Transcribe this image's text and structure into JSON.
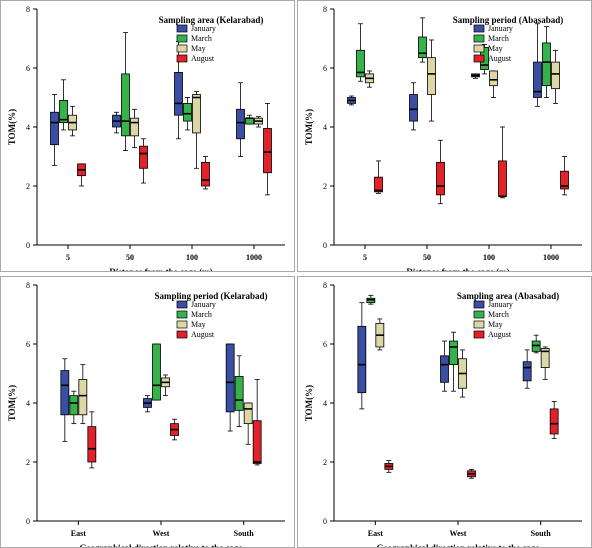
{
  "colors": {
    "January": "#3a4fa3",
    "March": "#35b34a",
    "May": "#ddd7a6",
    "August": "#e32129"
  },
  "chart_data": [
    {
      "type": "boxplot",
      "title": "Sampling area (Kelarabad)",
      "xlabel": "Distance from the cage (m)",
      "ylabel": "TOM(%)",
      "ylim": [
        0,
        8
      ],
      "yticks": [
        0,
        2,
        4,
        6,
        8
      ],
      "categories": [
        "5",
        "50",
        "100",
        "1000"
      ],
      "legend": {
        "position": "top-right",
        "entries": [
          "January",
          "March",
          "May",
          "August"
        ]
      },
      "series": [
        {
          "name": "January",
          "boxes": [
            {
              "min": 2.7,
              "q1": 3.4,
              "median": 4.15,
              "q3": 4.5,
              "max": 5.1
            },
            {
              "min": 3.8,
              "q1": 4.0,
              "median": 4.2,
              "q3": 4.4,
              "max": 4.5
            },
            {
              "min": 3.6,
              "q1": 4.4,
              "median": 4.8,
              "q3": 5.85,
              "max": 6.9
            },
            {
              "min": 3.0,
              "q1": 3.6,
              "median": 4.15,
              "q3": 4.6,
              "max": 5.5
            }
          ]
        },
        {
          "name": "March",
          "boxes": [
            {
              "min": 3.9,
              "q1": 4.15,
              "median": 4.25,
              "q3": 4.9,
              "max": 5.6
            },
            {
              "min": 3.2,
              "q1": 3.7,
              "median": 4.2,
              "q3": 5.8,
              "max": 7.2
            },
            {
              "min": 3.9,
              "q1": 4.2,
              "median": 4.45,
              "q3": 4.8,
              "max": 5.0
            },
            {
              "min": 4.1,
              "q1": 4.1,
              "median": 4.3,
              "q3": 4.3,
              "max": 4.4
            }
          ]
        },
        {
          "name": "May",
          "boxes": [
            {
              "min": 3.7,
              "q1": 3.9,
              "median": 4.15,
              "q3": 4.4,
              "max": 4.7
            },
            {
              "min": 3.3,
              "q1": 3.7,
              "median": 4.15,
              "q3": 4.3,
              "max": 4.6
            },
            {
              "min": 2.6,
              "q1": 3.8,
              "median": 5.0,
              "q3": 5.1,
              "max": 5.2
            },
            {
              "min": 4.0,
              "q1": 4.1,
              "median": 4.2,
              "q3": 4.3,
              "max": 4.35
            }
          ]
        },
        {
          "name": "August",
          "boxes": [
            {
              "min": 2.0,
              "q1": 2.35,
              "median": 2.55,
              "q3": 2.75,
              "max": 2.75
            },
            {
              "min": 2.1,
              "q1": 2.6,
              "median": 3.1,
              "q3": 3.35,
              "max": 3.6
            },
            {
              "min": 1.9,
              "q1": 2.0,
              "median": 2.2,
              "q3": 2.8,
              "max": 3.0
            },
            {
              "min": 1.7,
              "q1": 2.45,
              "median": 3.15,
              "q3": 3.95,
              "max": 4.8
            }
          ]
        }
      ]
    },
    {
      "type": "boxplot",
      "title": "Sampling period (Abasabad)",
      "xlabel": "Distance from the cage (m)",
      "ylabel": "TOM(%)",
      "ylim": [
        0,
        8
      ],
      "yticks": [
        0,
        2,
        4,
        6,
        8
      ],
      "categories": [
        "5",
        "50",
        "100",
        "1000"
      ],
      "legend": {
        "position": "top-right",
        "entries": [
          "January",
          "March",
          "May",
          "August"
        ]
      },
      "series": [
        {
          "name": "January",
          "boxes": [
            {
              "min": 4.75,
              "q1": 4.8,
              "median": 4.9,
              "q3": 5.0,
              "max": 5.05
            },
            {
              "min": 3.9,
              "q1": 4.2,
              "median": 4.6,
              "q3": 5.1,
              "max": 5.5
            },
            {
              "min": 5.65,
              "q1": 5.7,
              "median": 5.75,
              "q3": 5.8,
              "max": 5.8
            },
            {
              "min": 4.7,
              "q1": 5.0,
              "median": 5.2,
              "q3": 6.2,
              "max": 7.5
            }
          ]
        },
        {
          "name": "March",
          "boxes": [
            {
              "min": 5.55,
              "q1": 5.7,
              "median": 5.85,
              "q3": 6.6,
              "max": 7.5
            },
            {
              "min": 6.2,
              "q1": 6.35,
              "median": 6.5,
              "q3": 7.05,
              "max": 7.7
            },
            {
              "min": 5.8,
              "q1": 5.95,
              "median": 6.1,
              "q3": 6.7,
              "max": 6.8
            },
            {
              "min": 5.0,
              "q1": 5.4,
              "median": 6.2,
              "q3": 6.85,
              "max": 7.4
            }
          ]
        },
        {
          "name": "May",
          "boxes": [
            {
              "min": 5.35,
              "q1": 5.5,
              "median": 5.65,
              "q3": 5.8,
              "max": 5.9
            },
            {
              "min": 4.2,
              "q1": 5.1,
              "median": 5.8,
              "q3": 6.35,
              "max": 6.95
            },
            {
              "min": 5.0,
              "q1": 5.4,
              "median": 5.6,
              "q3": 5.9,
              "max": 5.9
            },
            {
              "min": 4.8,
              "q1": 5.3,
              "median": 5.8,
              "q3": 6.2,
              "max": 6.6
            }
          ]
        },
        {
          "name": "August",
          "boxes": [
            {
              "min": 1.75,
              "q1": 1.8,
              "median": 1.85,
              "q3": 2.3,
              "max": 2.85
            },
            {
              "min": 1.4,
              "q1": 1.7,
              "median": 2.0,
              "q3": 2.8,
              "max": 3.55
            },
            {
              "min": 1.6,
              "q1": 1.65,
              "median": 1.65,
              "q3": 2.85,
              "max": 4.0
            },
            {
              "min": 1.7,
              "q1": 1.9,
              "median": 2.0,
              "q3": 2.5,
              "max": 3.0
            }
          ]
        }
      ]
    },
    {
      "type": "boxplot",
      "title": "Sampling period (Kelarabad)",
      "xlabel": "Geographical direction relative to the cage",
      "ylabel": "TOM(%)",
      "ylim": [
        0,
        8
      ],
      "yticks": [
        0,
        2,
        4,
        6,
        8
      ],
      "categories": [
        "East",
        "West",
        "South"
      ],
      "legend": {
        "position": "top-right",
        "entries": [
          "January",
          "March",
          "May",
          "August"
        ]
      },
      "series": [
        {
          "name": "January",
          "boxes": [
            {
              "min": 2.7,
              "q1": 3.6,
              "median": 4.6,
              "q3": 5.1,
              "max": 5.5
            },
            {
              "min": 3.7,
              "q1": 3.85,
              "median": 4.0,
              "q3": 4.15,
              "max": 4.25
            },
            {
              "min": 3.05,
              "q1": 3.7,
              "median": 4.7,
              "q3": 6.0,
              "max": 6.0
            }
          ]
        },
        {
          "name": "March",
          "boxes": [
            {
              "min": 3.3,
              "q1": 3.6,
              "median": 4.0,
              "q3": 4.25,
              "max": 4.4
            },
            {
              "min": 4.1,
              "q1": 4.1,
              "median": 4.6,
              "q3": 6.0,
              "max": 6.0
            },
            {
              "min": 3.2,
              "q1": 3.75,
              "median": 4.1,
              "q3": 4.9,
              "max": 5.6
            }
          ]
        },
        {
          "name": "May",
          "boxes": [
            {
              "min": 3.3,
              "q1": 3.6,
              "median": 4.25,
              "q3": 4.8,
              "max": 5.3
            },
            {
              "min": 4.25,
              "q1": 4.55,
              "median": 4.7,
              "q3": 4.85,
              "max": 4.95
            },
            {
              "min": 2.6,
              "q1": 3.3,
              "median": 3.8,
              "q3": 4.0,
              "max": 4.0
            }
          ]
        },
        {
          "name": "August",
          "boxes": [
            {
              "min": 1.8,
              "q1": 2.0,
              "median": 2.45,
              "q3": 3.2,
              "max": 3.7
            },
            {
              "min": 2.75,
              "q1": 2.9,
              "median": 3.1,
              "q3": 3.3,
              "max": 3.45
            },
            {
              "min": 1.9,
              "q1": 1.95,
              "median": 2.0,
              "q3": 3.4,
              "max": 4.8
            }
          ]
        }
      ]
    },
    {
      "type": "boxplot",
      "title": "Sampling area (Abasabad)",
      "xlabel": "Geographical direction relative to the cage",
      "ylabel": "TOM(%)",
      "ylim": [
        0,
        8
      ],
      "yticks": [
        0,
        2,
        4,
        6,
        8
      ],
      "categories": [
        "East",
        "West",
        "South"
      ],
      "legend": {
        "position": "top-right",
        "entries": [
          "January",
          "March",
          "May",
          "August"
        ]
      },
      "series": [
        {
          "name": "January",
          "boxes": [
            {
              "min": 3.8,
              "q1": 4.35,
              "median": 5.3,
              "q3": 6.6,
              "max": 7.4
            },
            {
              "min": 4.4,
              "q1": 4.7,
              "median": 5.3,
              "q3": 5.6,
              "max": 6.1
            },
            {
              "min": 4.5,
              "q1": 4.75,
              "median": 5.2,
              "q3": 5.4,
              "max": 5.8
            }
          ]
        },
        {
          "name": "March",
          "boxes": [
            {
              "min": 7.35,
              "q1": 7.4,
              "median": 7.5,
              "q3": 7.55,
              "max": 7.65
            },
            {
              "min": 4.4,
              "q1": 5.3,
              "median": 5.9,
              "q3": 6.1,
              "max": 6.4
            },
            {
              "min": 5.7,
              "q1": 5.75,
              "median": 5.95,
              "q3": 6.1,
              "max": 6.3
            }
          ]
        },
        {
          "name": "May",
          "boxes": [
            {
              "min": 5.8,
              "q1": 5.9,
              "median": 6.3,
              "q3": 6.7,
              "max": 6.85
            },
            {
              "min": 4.2,
              "q1": 4.5,
              "median": 5.0,
              "q3": 5.5,
              "max": 5.8
            },
            {
              "min": 4.8,
              "q1": 5.2,
              "median": 5.75,
              "q3": 5.85,
              "max": 5.9
            }
          ]
        },
        {
          "name": "August",
          "boxes": [
            {
              "min": 1.65,
              "q1": 1.75,
              "median": 1.85,
              "q3": 1.95,
              "max": 2.05
            },
            {
              "min": 1.45,
              "q1": 1.5,
              "median": 1.6,
              "q3": 1.7,
              "max": 1.75
            },
            {
              "min": 2.8,
              "q1": 2.95,
              "median": 3.3,
              "q3": 3.8,
              "max": 4.05
            }
          ]
        }
      ]
    }
  ]
}
